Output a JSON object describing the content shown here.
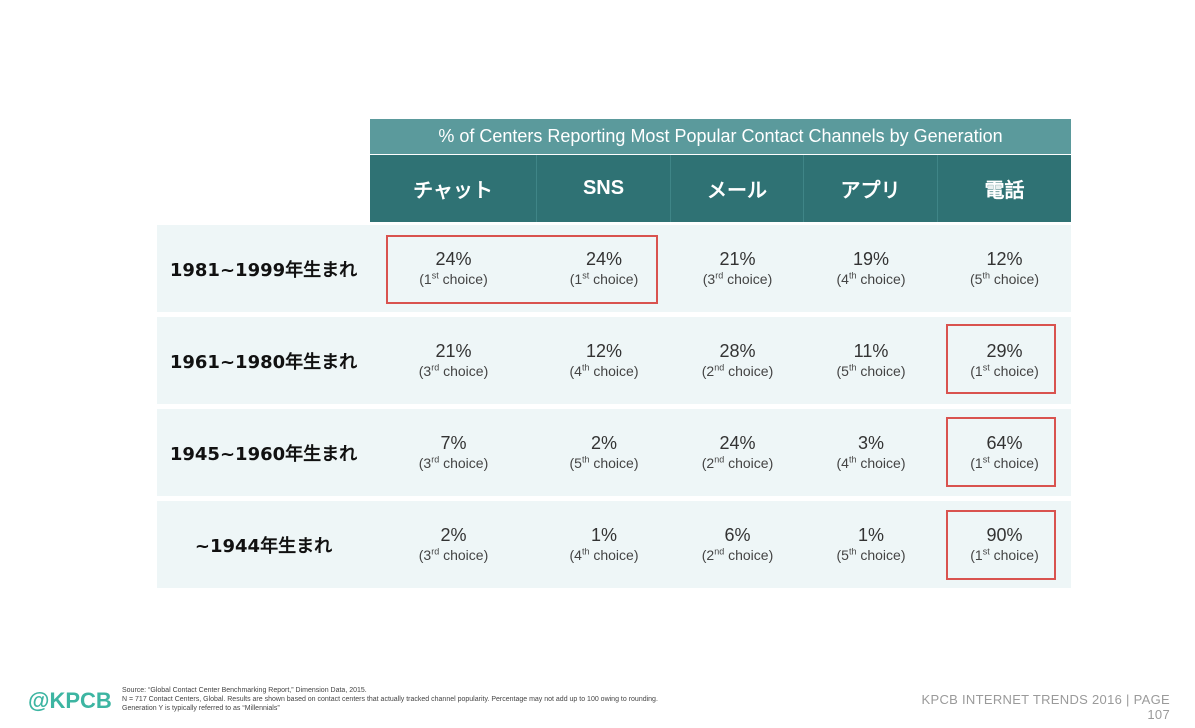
{
  "table": {
    "title": "% of Centers Reporting Most Popular Contact Channels by Generation",
    "columns": [
      "チャット",
      "SNS",
      "メール",
      "アプリ",
      "電話"
    ],
    "rows": [
      {
        "label": "1981~1999年生まれ",
        "cells": [
          {
            "pct": "24%",
            "num": "1",
            "sup": "st"
          },
          {
            "pct": "24%",
            "num": "1",
            "sup": "st"
          },
          {
            "pct": "21%",
            "num": "3",
            "sup": "rd"
          },
          {
            "pct": "19%",
            "num": "4",
            "sup": "th"
          },
          {
            "pct": "12%",
            "num": "5",
            "sup": "th"
          }
        ]
      },
      {
        "label": "1961~1980年生まれ",
        "cells": [
          {
            "pct": "21%",
            "num": "3",
            "sup": "rd"
          },
          {
            "pct": "12%",
            "num": "4",
            "sup": "th"
          },
          {
            "pct": "28%",
            "num": "2",
            "sup": "nd"
          },
          {
            "pct": "11%",
            "num": "5",
            "sup": "th"
          },
          {
            "pct": "29%",
            "num": "1",
            "sup": "st"
          }
        ]
      },
      {
        "label": "1945~1960年生まれ",
        "cells": [
          {
            "pct": "7%",
            "num": "3",
            "sup": "rd"
          },
          {
            "pct": "2%",
            "num": "5",
            "sup": "th"
          },
          {
            "pct": "24%",
            "num": "2",
            "sup": "nd"
          },
          {
            "pct": "3%",
            "num": "4",
            "sup": "th"
          },
          {
            "pct": "64%",
            "num": "1",
            "sup": "st"
          }
        ]
      },
      {
        "label": "~1944年生まれ",
        "cells": [
          {
            "pct": "2%",
            "num": "3",
            "sup": "rd"
          },
          {
            "pct": "1%",
            "num": "4",
            "sup": "th"
          },
          {
            "pct": "6%",
            "num": "2",
            "sup": "nd"
          },
          {
            "pct": "1%",
            "num": "5",
            "sup": "th"
          },
          {
            "pct": "90%",
            "num": "1",
            "sup": "st"
          }
        ]
      }
    ],
    "choice_word": "choice"
  },
  "footer": {
    "logo": "@KPCB",
    "source_lines": [
      "Source: “Global Contact Center Benchmarking Report,” Dimension Data, 2015.",
      "N = 717 Contact Centers, Global. Results are shown based on contact centers that actually tracked channel popularity. Percentage may not add up to 100 owing to rounding.",
      "Generation Y is typically referred to as “Millennials”"
    ],
    "right_line1": "KPCB INTERNET TRENDS 2016  |  PAGE",
    "page_number": "107"
  },
  "colors": {
    "title_bar": "#5b9a9c",
    "header": "#2f7274",
    "row_bg": "#eef6f7",
    "highlight": "#d9534f",
    "logo": "#3db5a2"
  }
}
